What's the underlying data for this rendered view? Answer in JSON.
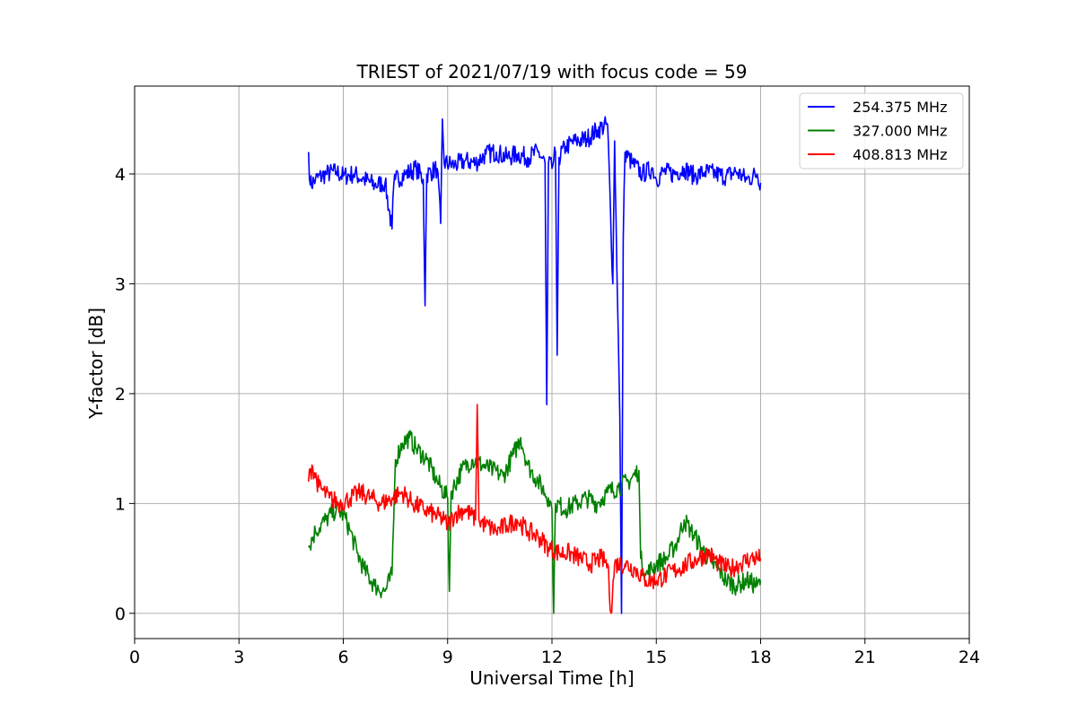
{
  "chart_data": {
    "type": "line",
    "title": "TRIEST of 2021/07/19 with focus code = 59",
    "xlabel": "Universal Time [h]",
    "ylabel": "Y-factor [dB]",
    "xlim": [
      0,
      24
    ],
    "ylim": [
      -0.23,
      4.8
    ],
    "xticks": [
      0,
      3,
      6,
      9,
      12,
      15,
      18,
      21,
      24
    ],
    "yticks": [
      0,
      1,
      2,
      3,
      4
    ],
    "grid": true,
    "legend_position": "top-right",
    "series": [
      {
        "name": "254.375 MHz",
        "color": "#0000ff",
        "x": [
          5.0,
          5.05,
          5.2,
          5.5,
          5.8,
          6.0,
          6.3,
          6.6,
          6.9,
          7.2,
          7.4,
          7.45,
          7.5,
          7.8,
          8.1,
          8.3,
          8.35,
          8.4,
          8.7,
          8.8,
          8.85,
          8.9,
          9.2,
          9.5,
          9.8,
          10.1,
          10.4,
          10.7,
          11.0,
          11.3,
          11.6,
          11.8,
          11.85,
          11.9,
          12.0,
          12.1,
          12.15,
          12.2,
          12.4,
          12.7,
          13.0,
          13.3,
          13.6,
          13.75,
          13.8,
          13.95,
          14.0,
          14.05,
          14.1,
          14.3,
          14.6,
          14.9,
          15.0,
          15.2,
          15.5,
          15.8,
          16.1,
          16.4,
          16.7,
          17.0,
          17.3,
          17.6,
          17.9,
          18.0
        ],
        "y": [
          4.2,
          3.9,
          3.95,
          4.0,
          4.02,
          3.98,
          4.0,
          3.95,
          3.9,
          3.92,
          3.5,
          3.9,
          3.95,
          4.0,
          4.05,
          3.95,
          2.8,
          4.0,
          4.05,
          3.55,
          4.5,
          4.1,
          4.08,
          4.12,
          4.1,
          4.18,
          4.2,
          4.15,
          4.18,
          4.15,
          4.2,
          4.1,
          1.9,
          4.1,
          4.05,
          4.2,
          2.35,
          4.15,
          4.25,
          4.3,
          4.32,
          4.4,
          4.45,
          3.0,
          4.3,
          1.8,
          0.0,
          3.4,
          4.2,
          4.1,
          4.0,
          4.05,
          3.95,
          4.02,
          4.0,
          4.05,
          3.98,
          4.02,
          4.0,
          3.98,
          4.02,
          3.95,
          4.0,
          3.92
        ]
      },
      {
        "name": "327.000 MHz",
        "color": "#008000",
        "x": [
          5.0,
          5.2,
          5.5,
          5.8,
          6.0,
          6.2,
          6.4,
          6.6,
          6.9,
          7.2,
          7.4,
          7.5,
          7.7,
          7.9,
          8.1,
          8.4,
          8.7,
          9.0,
          9.05,
          9.1,
          9.4,
          9.7,
          10.0,
          10.3,
          10.6,
          10.9,
          11.1,
          11.3,
          11.6,
          11.9,
          12.0,
          12.05,
          12.1,
          12.4,
          12.7,
          13.0,
          13.3,
          13.6,
          13.9,
          14.2,
          14.5,
          14.55,
          14.7,
          15.0,
          15.3,
          15.6,
          15.8,
          16.0,
          16.3,
          16.6,
          16.8,
          17.0,
          17.3,
          17.6,
          17.9,
          18.0
        ],
        "y": [
          0.6,
          0.75,
          0.85,
          0.95,
          0.9,
          0.75,
          0.55,
          0.4,
          0.25,
          0.2,
          0.35,
          1.4,
          1.55,
          1.6,
          1.5,
          1.4,
          1.2,
          1.05,
          0.2,
          1.1,
          1.3,
          1.4,
          1.35,
          1.3,
          1.25,
          1.45,
          1.6,
          1.35,
          1.2,
          1.05,
          0.95,
          0.0,
          1.0,
          0.95,
          1.0,
          1.05,
          1.0,
          1.1,
          1.15,
          1.2,
          1.3,
          0.5,
          0.35,
          0.45,
          0.5,
          0.65,
          0.85,
          0.75,
          0.6,
          0.45,
          0.4,
          0.3,
          0.25,
          0.3,
          0.25,
          0.3
        ]
      },
      {
        "name": "408.813 MHz",
        "color": "#ff0000",
        "x": [
          5.0,
          5.1,
          5.3,
          5.6,
          5.9,
          6.2,
          6.5,
          6.8,
          7.1,
          7.4,
          7.7,
          8.0,
          8.3,
          8.6,
          8.9,
          9.0,
          9.2,
          9.5,
          9.8,
          9.85,
          9.9,
          10.1,
          10.4,
          10.7,
          11.0,
          11.3,
          11.6,
          11.9,
          12.2,
          12.5,
          12.8,
          13.1,
          13.4,
          13.6,
          13.7,
          13.8,
          14.1,
          14.4,
          14.7,
          15.0,
          15.3,
          15.6,
          15.9,
          16.2,
          16.5,
          16.8,
          17.1,
          17.4,
          17.7,
          18.0
        ],
        "y": [
          1.2,
          1.35,
          1.15,
          1.05,
          1.0,
          1.05,
          1.1,
          1.05,
          1.0,
          1.05,
          1.1,
          1.0,
          0.95,
          0.9,
          0.85,
          0.8,
          0.9,
          0.95,
          0.85,
          1.9,
          0.85,
          0.8,
          0.75,
          0.8,
          0.85,
          0.75,
          0.7,
          0.6,
          0.55,
          0.55,
          0.5,
          0.45,
          0.5,
          0.45,
          0.0,
          0.45,
          0.45,
          0.4,
          0.3,
          0.3,
          0.35,
          0.4,
          0.45,
          0.5,
          0.55,
          0.45,
          0.4,
          0.45,
          0.5,
          0.5
        ]
      }
    ]
  }
}
